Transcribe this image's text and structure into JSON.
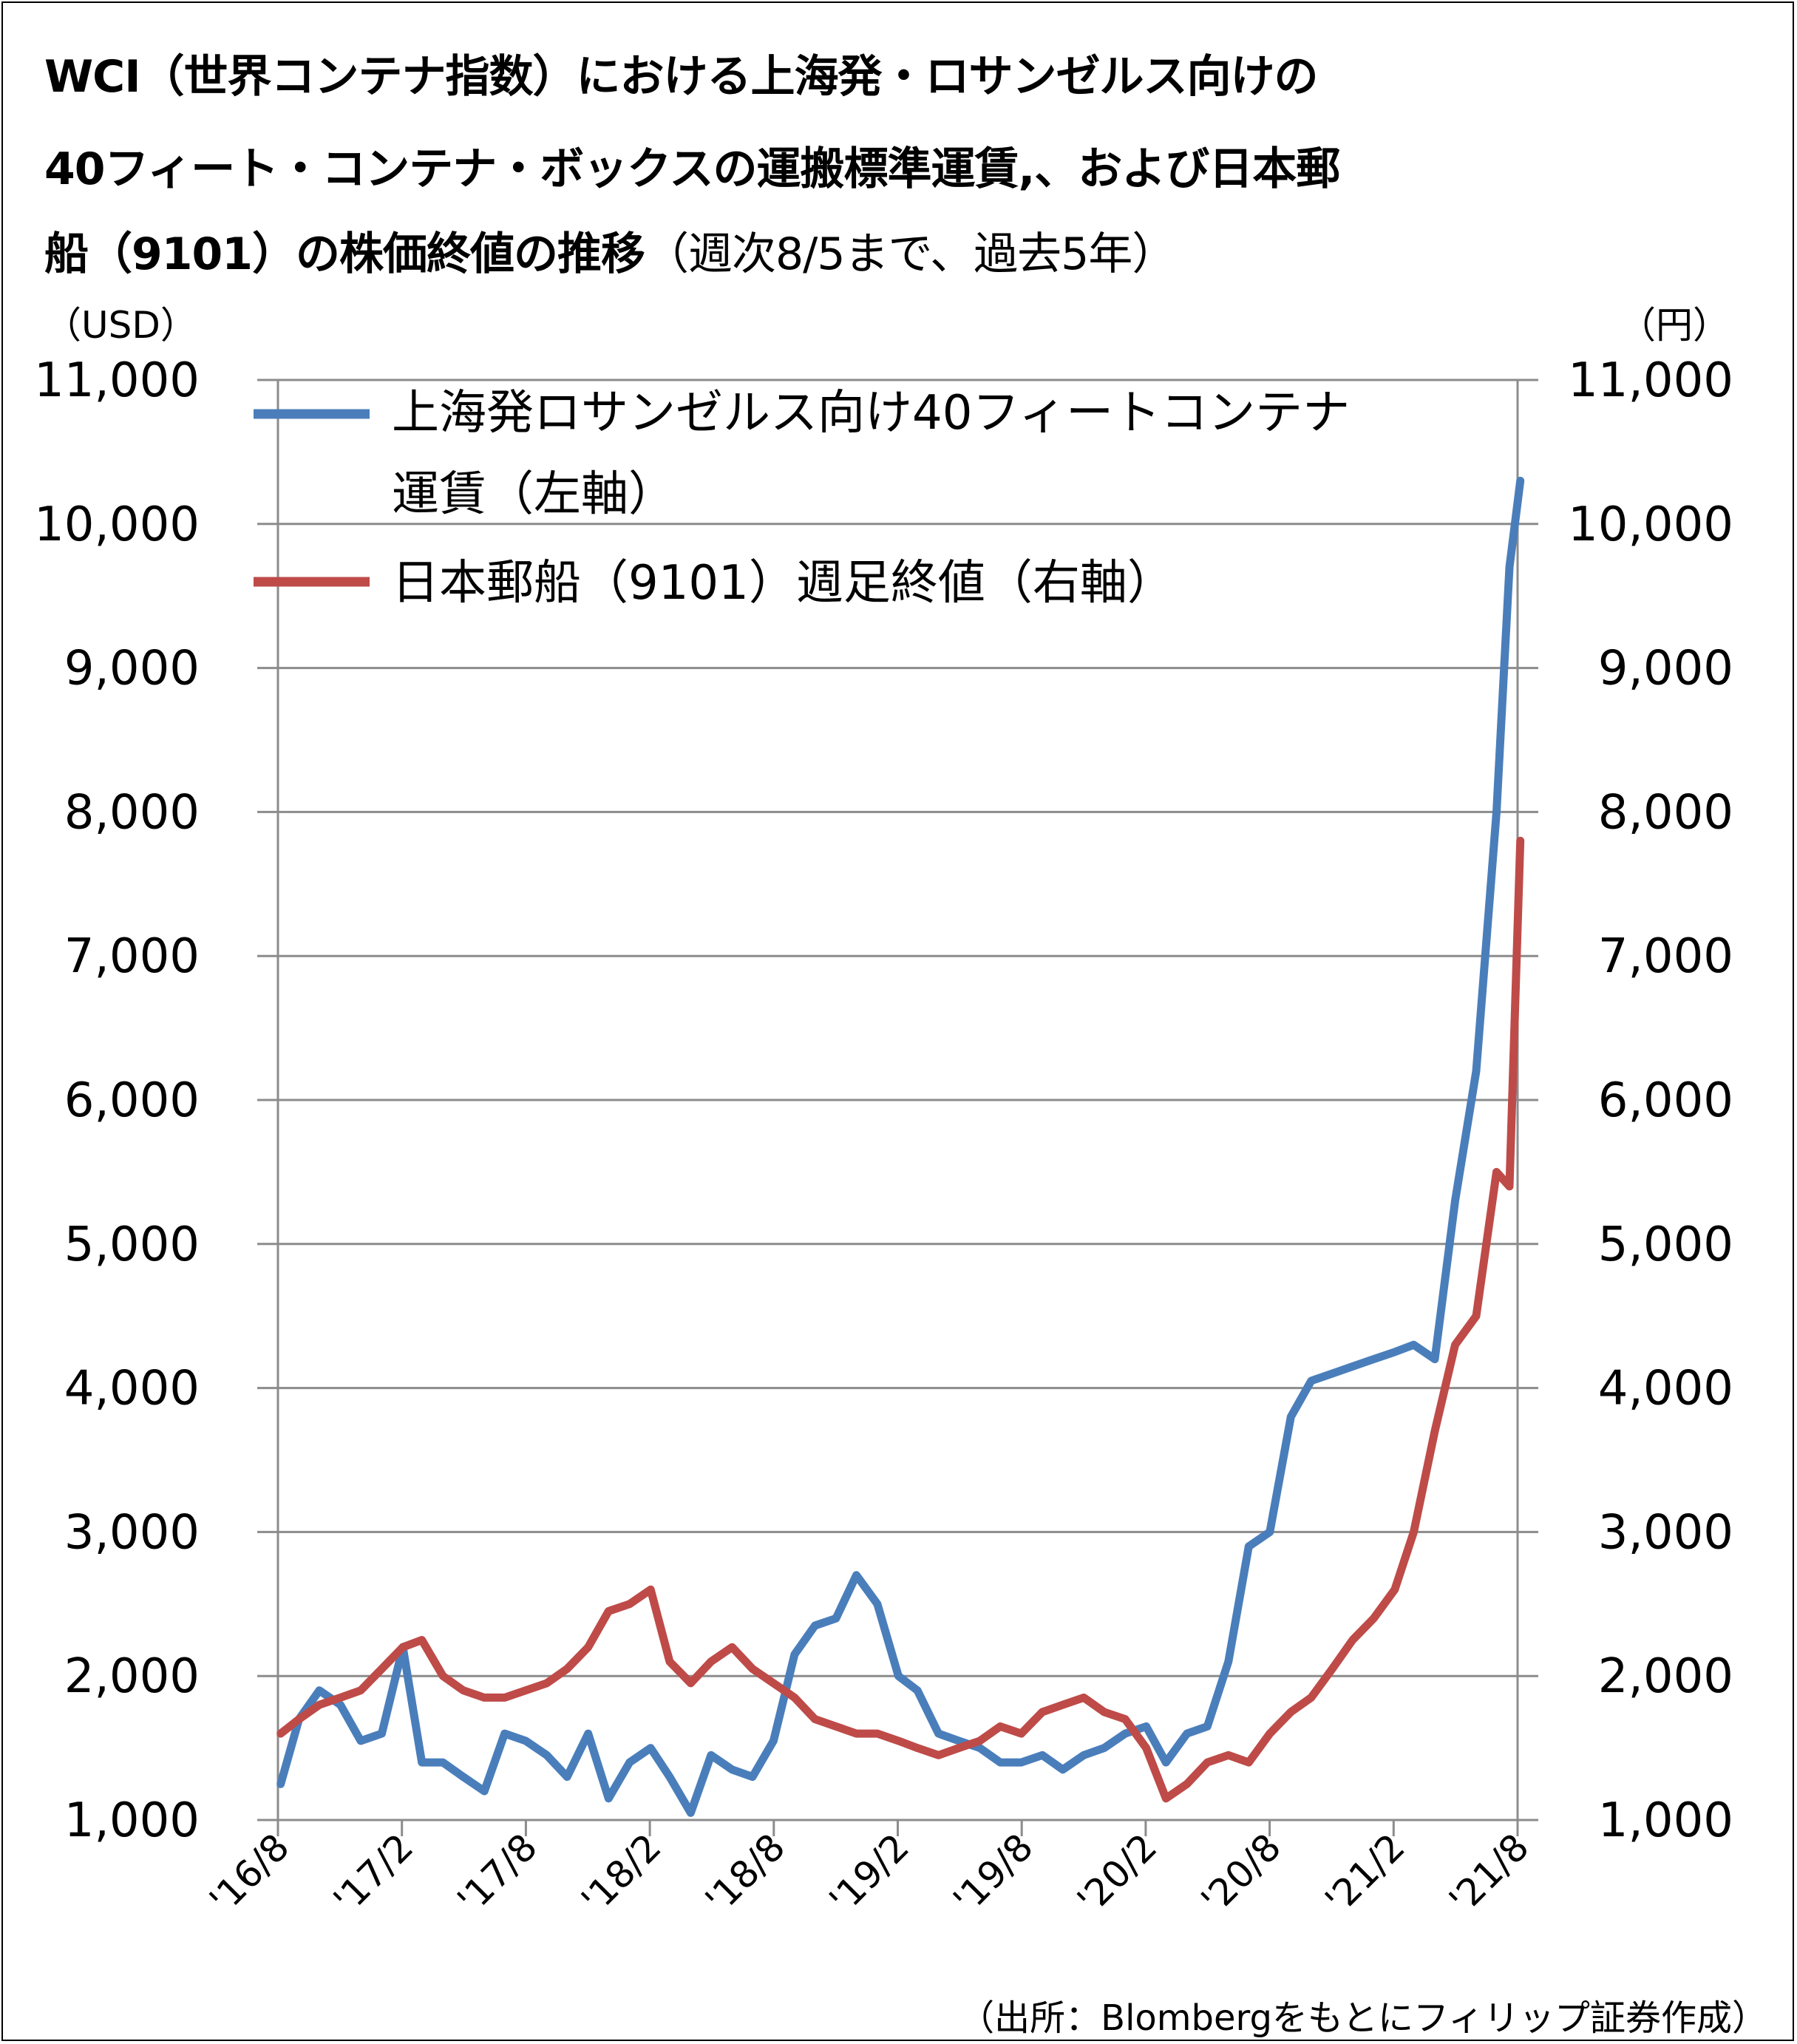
{
  "title": {
    "line1": "WCI（世界コンテナ指数）における上海発・ロサンゼルス向けの",
    "line2": "40フィート・コンテナ・ボックスの運搬標準運賃,、および日本郵",
    "line3_bold": "船（9101）の株価終値の推移",
    "line3_normal": "（週次8/5まで、過去5年）"
  },
  "axes": {
    "left_unit": "（USD）",
    "right_unit": "（円）"
  },
  "source": "（出所：Blombergをもとにフィリップ証券作成）",
  "chart_data": {
    "type": "line",
    "grid": true,
    "legend_position": "top-left",
    "y_left": {
      "range": [
        1000,
        11000
      ],
      "ticks": [
        "1,000",
        "2,000",
        "3,000",
        "4,000",
        "5,000",
        "6,000",
        "7,000",
        "8,000",
        "9,000",
        "10,000",
        "11,000"
      ]
    },
    "y_right": {
      "range": [
        1000,
        11000
      ],
      "ticks": [
        "1,000",
        "2,000",
        "3,000",
        "4,000",
        "5,000",
        "6,000",
        "7,000",
        "8,000",
        "9,000",
        "10,000",
        "11,000"
      ]
    },
    "x_ticks": [
      "'16/8",
      "'17/2",
      "'17/8",
      "'18/2",
      "'18/8",
      "'19/2",
      "'19/8",
      "'20/2",
      "'20/8",
      "'21/2",
      "'21/8"
    ],
    "series": [
      {
        "name": "上海発ロサンゼルス向け40フィートコンテナ",
        "name_line2": "運賃（左軸）",
        "axis": "left",
        "color": "#4a7ebb",
        "x": [
          "2016-08-05",
          "2016-09-01",
          "2016-10-01",
          "2016-11-01",
          "2016-12-01",
          "2017-01-01",
          "2017-02-01",
          "2017-03-01",
          "2017-04-01",
          "2017-05-01",
          "2017-06-01",
          "2017-07-01",
          "2017-08-01",
          "2017-09-01",
          "2017-10-01",
          "2017-11-01",
          "2017-12-01",
          "2018-01-01",
          "2018-02-01",
          "2018-03-01",
          "2018-04-01",
          "2018-05-01",
          "2018-06-01",
          "2018-07-01",
          "2018-08-01",
          "2018-09-01",
          "2018-10-01",
          "2018-11-01",
          "2018-12-01",
          "2019-01-01",
          "2019-02-01",
          "2019-03-01",
          "2019-04-01",
          "2019-05-01",
          "2019-06-01",
          "2019-07-01",
          "2019-08-01",
          "2019-09-01",
          "2019-10-01",
          "2019-11-01",
          "2019-12-01",
          "2020-01-01",
          "2020-02-01",
          "2020-03-01",
          "2020-04-01",
          "2020-05-01",
          "2020-06-01",
          "2020-07-01",
          "2020-08-01",
          "2020-09-01",
          "2020-10-01",
          "2020-11-01",
          "2020-12-01",
          "2021-01-01",
          "2021-02-01",
          "2021-03-01",
          "2021-04-01",
          "2021-05-01",
          "2021-06-01",
          "2021-07-01",
          "2021-07-20",
          "2021-08-05"
        ],
        "values": [
          1250,
          1700,
          1900,
          1800,
          1550,
          1600,
          2200,
          1400,
          1400,
          1300,
          1200,
          1600,
          1550,
          1450,
          1300,
          1600,
          1150,
          1400,
          1500,
          1300,
          1050,
          1450,
          1350,
          1300,
          1550,
          2150,
          2350,
          2400,
          2700,
          2500,
          2000,
          1900,
          1600,
          1550,
          1500,
          1400,
          1400,
          1450,
          1350,
          1450,
          1500,
          1600,
          1650,
          1400,
          1600,
          1650,
          2100,
          2900,
          3000,
          3800,
          4050,
          4100,
          4150,
          4200,
          4250,
          4300,
          4200,
          5300,
          6200,
          8000,
          9700,
          10300
        ]
      },
      {
        "name": "日本郵船（9101）週足終値（右軸）",
        "axis": "right",
        "color": "#be4b48",
        "x": [
          "2016-08-05",
          "2016-09-01",
          "2016-10-01",
          "2016-11-01",
          "2016-12-01",
          "2017-01-01",
          "2017-02-01",
          "2017-03-01",
          "2017-04-01",
          "2017-05-01",
          "2017-06-01",
          "2017-07-01",
          "2017-08-01",
          "2017-09-01",
          "2017-10-01",
          "2017-11-01",
          "2017-12-01",
          "2018-01-01",
          "2018-02-01",
          "2018-03-01",
          "2018-04-01",
          "2018-05-01",
          "2018-06-01",
          "2018-07-01",
          "2018-08-01",
          "2018-09-01",
          "2018-10-01",
          "2018-11-01",
          "2018-12-01",
          "2019-01-01",
          "2019-02-01",
          "2019-03-01",
          "2019-04-01",
          "2019-05-01",
          "2019-06-01",
          "2019-07-01",
          "2019-08-01",
          "2019-09-01",
          "2019-10-01",
          "2019-11-01",
          "2019-12-01",
          "2020-01-01",
          "2020-02-01",
          "2020-03-01",
          "2020-04-01",
          "2020-05-01",
          "2020-06-01",
          "2020-07-01",
          "2020-08-01",
          "2020-09-01",
          "2020-10-01",
          "2020-11-01",
          "2020-12-01",
          "2021-01-01",
          "2021-02-01",
          "2021-03-01",
          "2021-04-01",
          "2021-05-01",
          "2021-06-01",
          "2021-07-01",
          "2021-07-20",
          "2021-08-05"
        ],
        "values": [
          1600,
          1700,
          1800,
          1850,
          1900,
          2050,
          2200,
          2250,
          2000,
          1900,
          1850,
          1850,
          1900,
          1950,
          2050,
          2200,
          2450,
          2500,
          2600,
          2100,
          1950,
          2100,
          2200,
          2050,
          1950,
          1850,
          1700,
          1650,
          1600,
          1600,
          1550,
          1500,
          1450,
          1500,
          1550,
          1650,
          1600,
          1750,
          1800,
          1850,
          1750,
          1700,
          1500,
          1150,
          1250,
          1400,
          1450,
          1400,
          1600,
          1750,
          1850,
          2050,
          2250,
          2400,
          2600,
          3000,
          3700,
          4300,
          4500,
          5500,
          5400,
          7800
        ]
      }
    ]
  }
}
